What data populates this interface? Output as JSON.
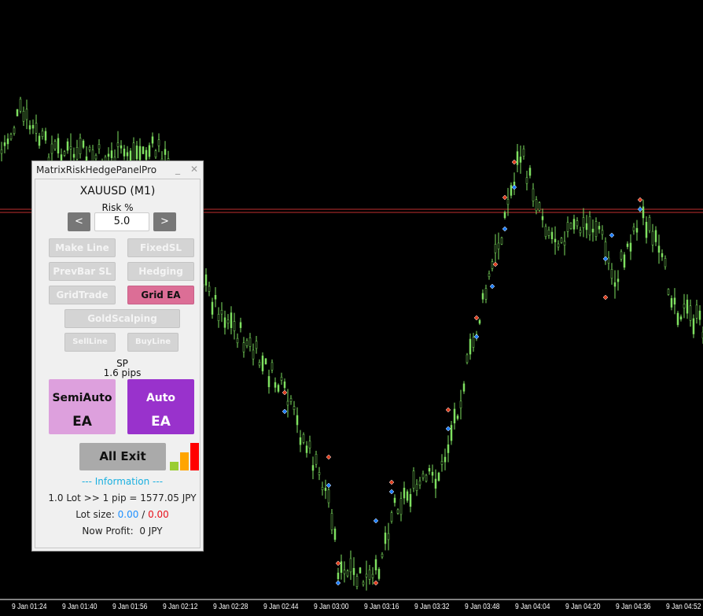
{
  "panel": {
    "title": "MatrixRiskHedgePanelPro",
    "minimize": "_",
    "close": "✕",
    "symbol": "XAUUSD (M1)",
    "risk_label": "Risk %",
    "risk_value": "5.0",
    "decrease": "<",
    "increase": ">",
    "buttons": {
      "make_line": "Make Line",
      "fixed_sl": "FixedSL",
      "prevbar_sl": "PrevBar SL",
      "hedging": "Hedging",
      "grid_trade": "GridTrade",
      "grid_ea": "Grid EA",
      "gold_scalping": "GoldScalping",
      "sell_line": "SellLine",
      "buy_line": "BuyLine"
    },
    "spread_label": "SP",
    "spread_value": "1.6 pips",
    "semiauto": {
      "line1": "SemiAuto",
      "line2": "EA"
    },
    "auto": {
      "line1": "Auto",
      "line2": "EA"
    },
    "all_exit": "All Exit",
    "information": "--- Information ---",
    "pip_value": "1.0 Lot >> 1 pip = 1577.05 JPY",
    "lot_label": "Lot size:",
    "lot_buy": "0.00",
    "lot_sep": "/",
    "lot_sell": "0.00",
    "profit_label": "Now Profit:",
    "profit_value": "0 JPY",
    "colors": {
      "grid_ea": "#dc6e96",
      "semiauto": "#dda0dd",
      "auto": "#9932cc",
      "info": "#1ab0e0",
      "buy": "#1e90ff",
      "sell": "#e8101a"
    }
  },
  "time_axis": [
    "9 Jan 01:24",
    "9 Jan 01:40",
    "9 Jan 01:56",
    "9 Jan 02:12",
    "9 Jan 02:28",
    "9 Jan 02:44",
    "9 Jan 03:00",
    "9 Jan 03:16",
    "9 Jan 03:32",
    "9 Jan 03:48",
    "9 Jan 04:04",
    "9 Jan 04:20",
    "9 Jan 04:36",
    "9 Jan 04:52"
  ],
  "colors": {
    "candles": "#7ee060",
    "background": "#000000",
    "price_line": "#c03030"
  }
}
